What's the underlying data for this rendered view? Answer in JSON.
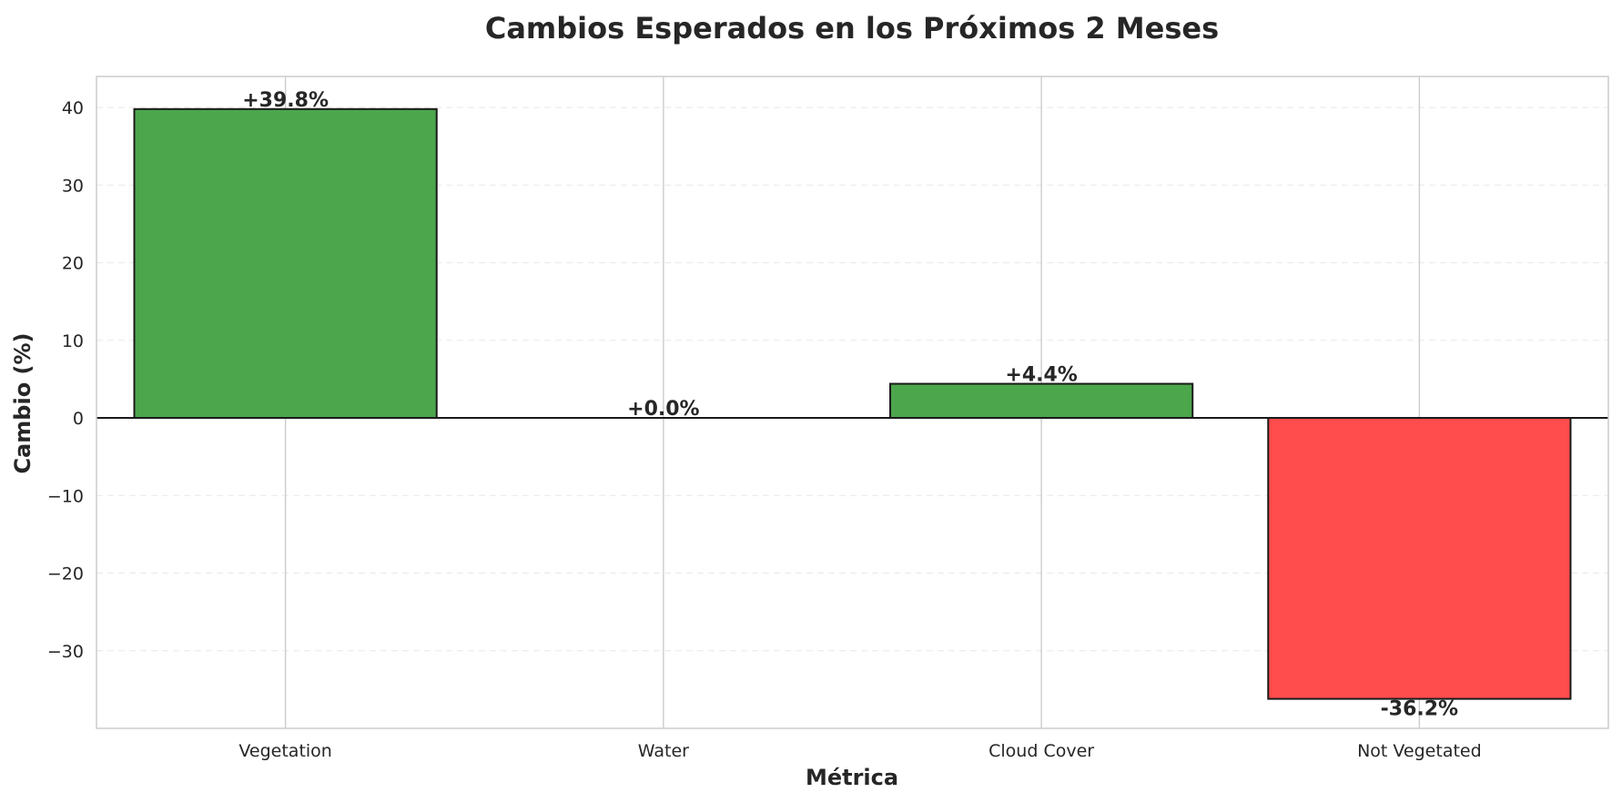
{
  "chart_data": {
    "type": "bar",
    "title": "Cambios Esperados en los Próximos 2 Meses",
    "xlabel": "Métrica",
    "ylabel": "Cambio (%)",
    "categories": [
      "Vegetation",
      "Water",
      "Cloud Cover",
      "Not Vegetated"
    ],
    "values": [
      39.8,
      0.0,
      4.4,
      -36.2
    ],
    "data_labels": [
      "+39.8%",
      "+0.0%",
      "+4.4%",
      "-36.2%"
    ],
    "ylim": [
      -40,
      44
    ],
    "yticks": [
      -30,
      -20,
      -10,
      0,
      10,
      20,
      30,
      40
    ],
    "ytick_labels": [
      "−30",
      "−20",
      "−10",
      "0",
      "10",
      "20",
      "30",
      "40"
    ],
    "positive_color": "#4ca64c",
    "negative_color": "#ff4c4c",
    "grid": true,
    "legend": "none"
  }
}
